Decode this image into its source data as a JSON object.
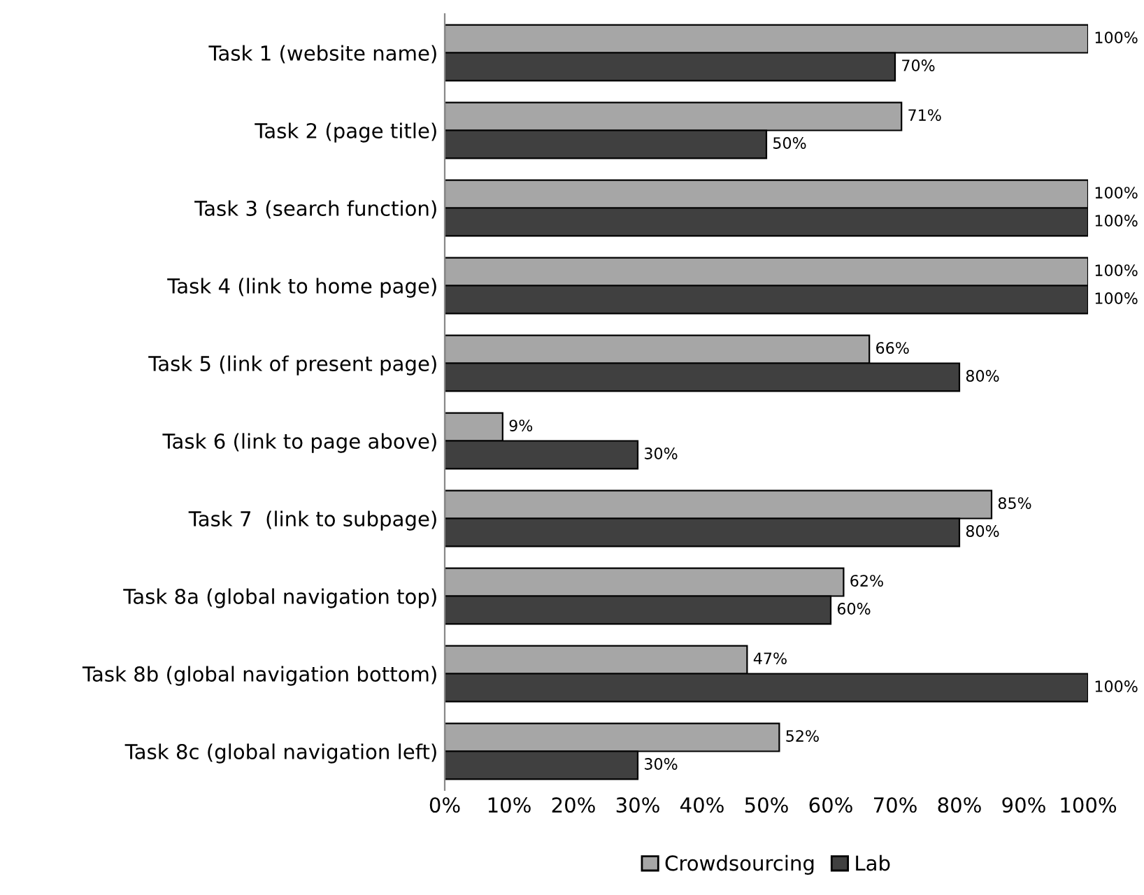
{
  "chart_data": {
    "type": "bar",
    "orientation": "horizontal",
    "categories": [
      "Task 1 (website name)",
      "Task 2 (page title)",
      "Task 3 (search function)",
      "Task 4 (link to home page)",
      "Task 5 (link of present page)",
      "Task 6 (link to page above)",
      "Task 7  (link to subpage)",
      "Task 8a (global navigation top)",
      "Task 8b (global navigation bottom)",
      "Task 8c (global navigation left)"
    ],
    "series": [
      {
        "name": "Crowdsourcing",
        "color": "#a6a6a6",
        "values": [
          100,
          71,
          100,
          100,
          66,
          9,
          85,
          62,
          47,
          52
        ],
        "value_labels": [
          "100%",
          "71%",
          "100%",
          "100%",
          "66%",
          "9%",
          "85%",
          "62%",
          "47%",
          "52%"
        ]
      },
      {
        "name": "Lab",
        "color": "#404040",
        "values": [
          70,
          50,
          100,
          100,
          80,
          30,
          80,
          60,
          100,
          30
        ],
        "value_labels": [
          "70%",
          "50%",
          "100%",
          "100%",
          "80%",
          "30%",
          "80%",
          "60%",
          "100%",
          "30%"
        ]
      }
    ],
    "xlim": [
      0,
      100
    ],
    "xticks": [
      {
        "value": 0,
        "label": "0%"
      },
      {
        "value": 10,
        "label": "10%"
      },
      {
        "value": 20,
        "label": "20%"
      },
      {
        "value": 30,
        "label": "30%"
      },
      {
        "value": 40,
        "label": "40%"
      },
      {
        "value": 50,
        "label": "50%"
      },
      {
        "value": 60,
        "label": "60%"
      },
      {
        "value": 70,
        "label": "70%"
      },
      {
        "value": 80,
        "label": "80%"
      },
      {
        "value": 90,
        "label": "90%"
      },
      {
        "value": 100,
        "label": "100%"
      }
    ],
    "grid": false,
    "legend": "bottom"
  }
}
